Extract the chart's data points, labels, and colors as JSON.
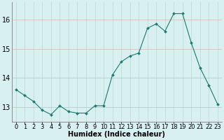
{
  "x": [
    0,
    1,
    2,
    3,
    4,
    5,
    6,
    7,
    8,
    9,
    10,
    11,
    12,
    13,
    14,
    15,
    16,
    17,
    18,
    19,
    20,
    21,
    22,
    23
  ],
  "y": [
    13.6,
    13.4,
    13.2,
    12.9,
    12.75,
    13.05,
    12.85,
    12.8,
    12.8,
    13.05,
    13.05,
    14.1,
    14.55,
    14.75,
    14.85,
    15.7,
    15.85,
    15.6,
    16.2,
    16.2,
    15.2,
    14.35,
    13.75,
    13.1
  ],
  "line_color": "#1a7a6e",
  "marker": "D",
  "marker_size": 2.0,
  "bg_color": "#d8f0ef",
  "grid_color": "#b8d8d8",
  "xlabel": "Humidex (Indice chaleur)",
  "xlabel_fontsize": 7,
  "tick_fontsize": 6,
  "ylim": [
    12.5,
    16.6
  ],
  "xlim": [
    -0.5,
    23.5
  ],
  "yticks": [
    13,
    14,
    15,
    16
  ],
  "xticks": [
    0,
    1,
    2,
    3,
    4,
    5,
    6,
    7,
    8,
    9,
    10,
    11,
    12,
    13,
    14,
    15,
    16,
    17,
    18,
    19,
    20,
    21,
    22,
    23
  ]
}
